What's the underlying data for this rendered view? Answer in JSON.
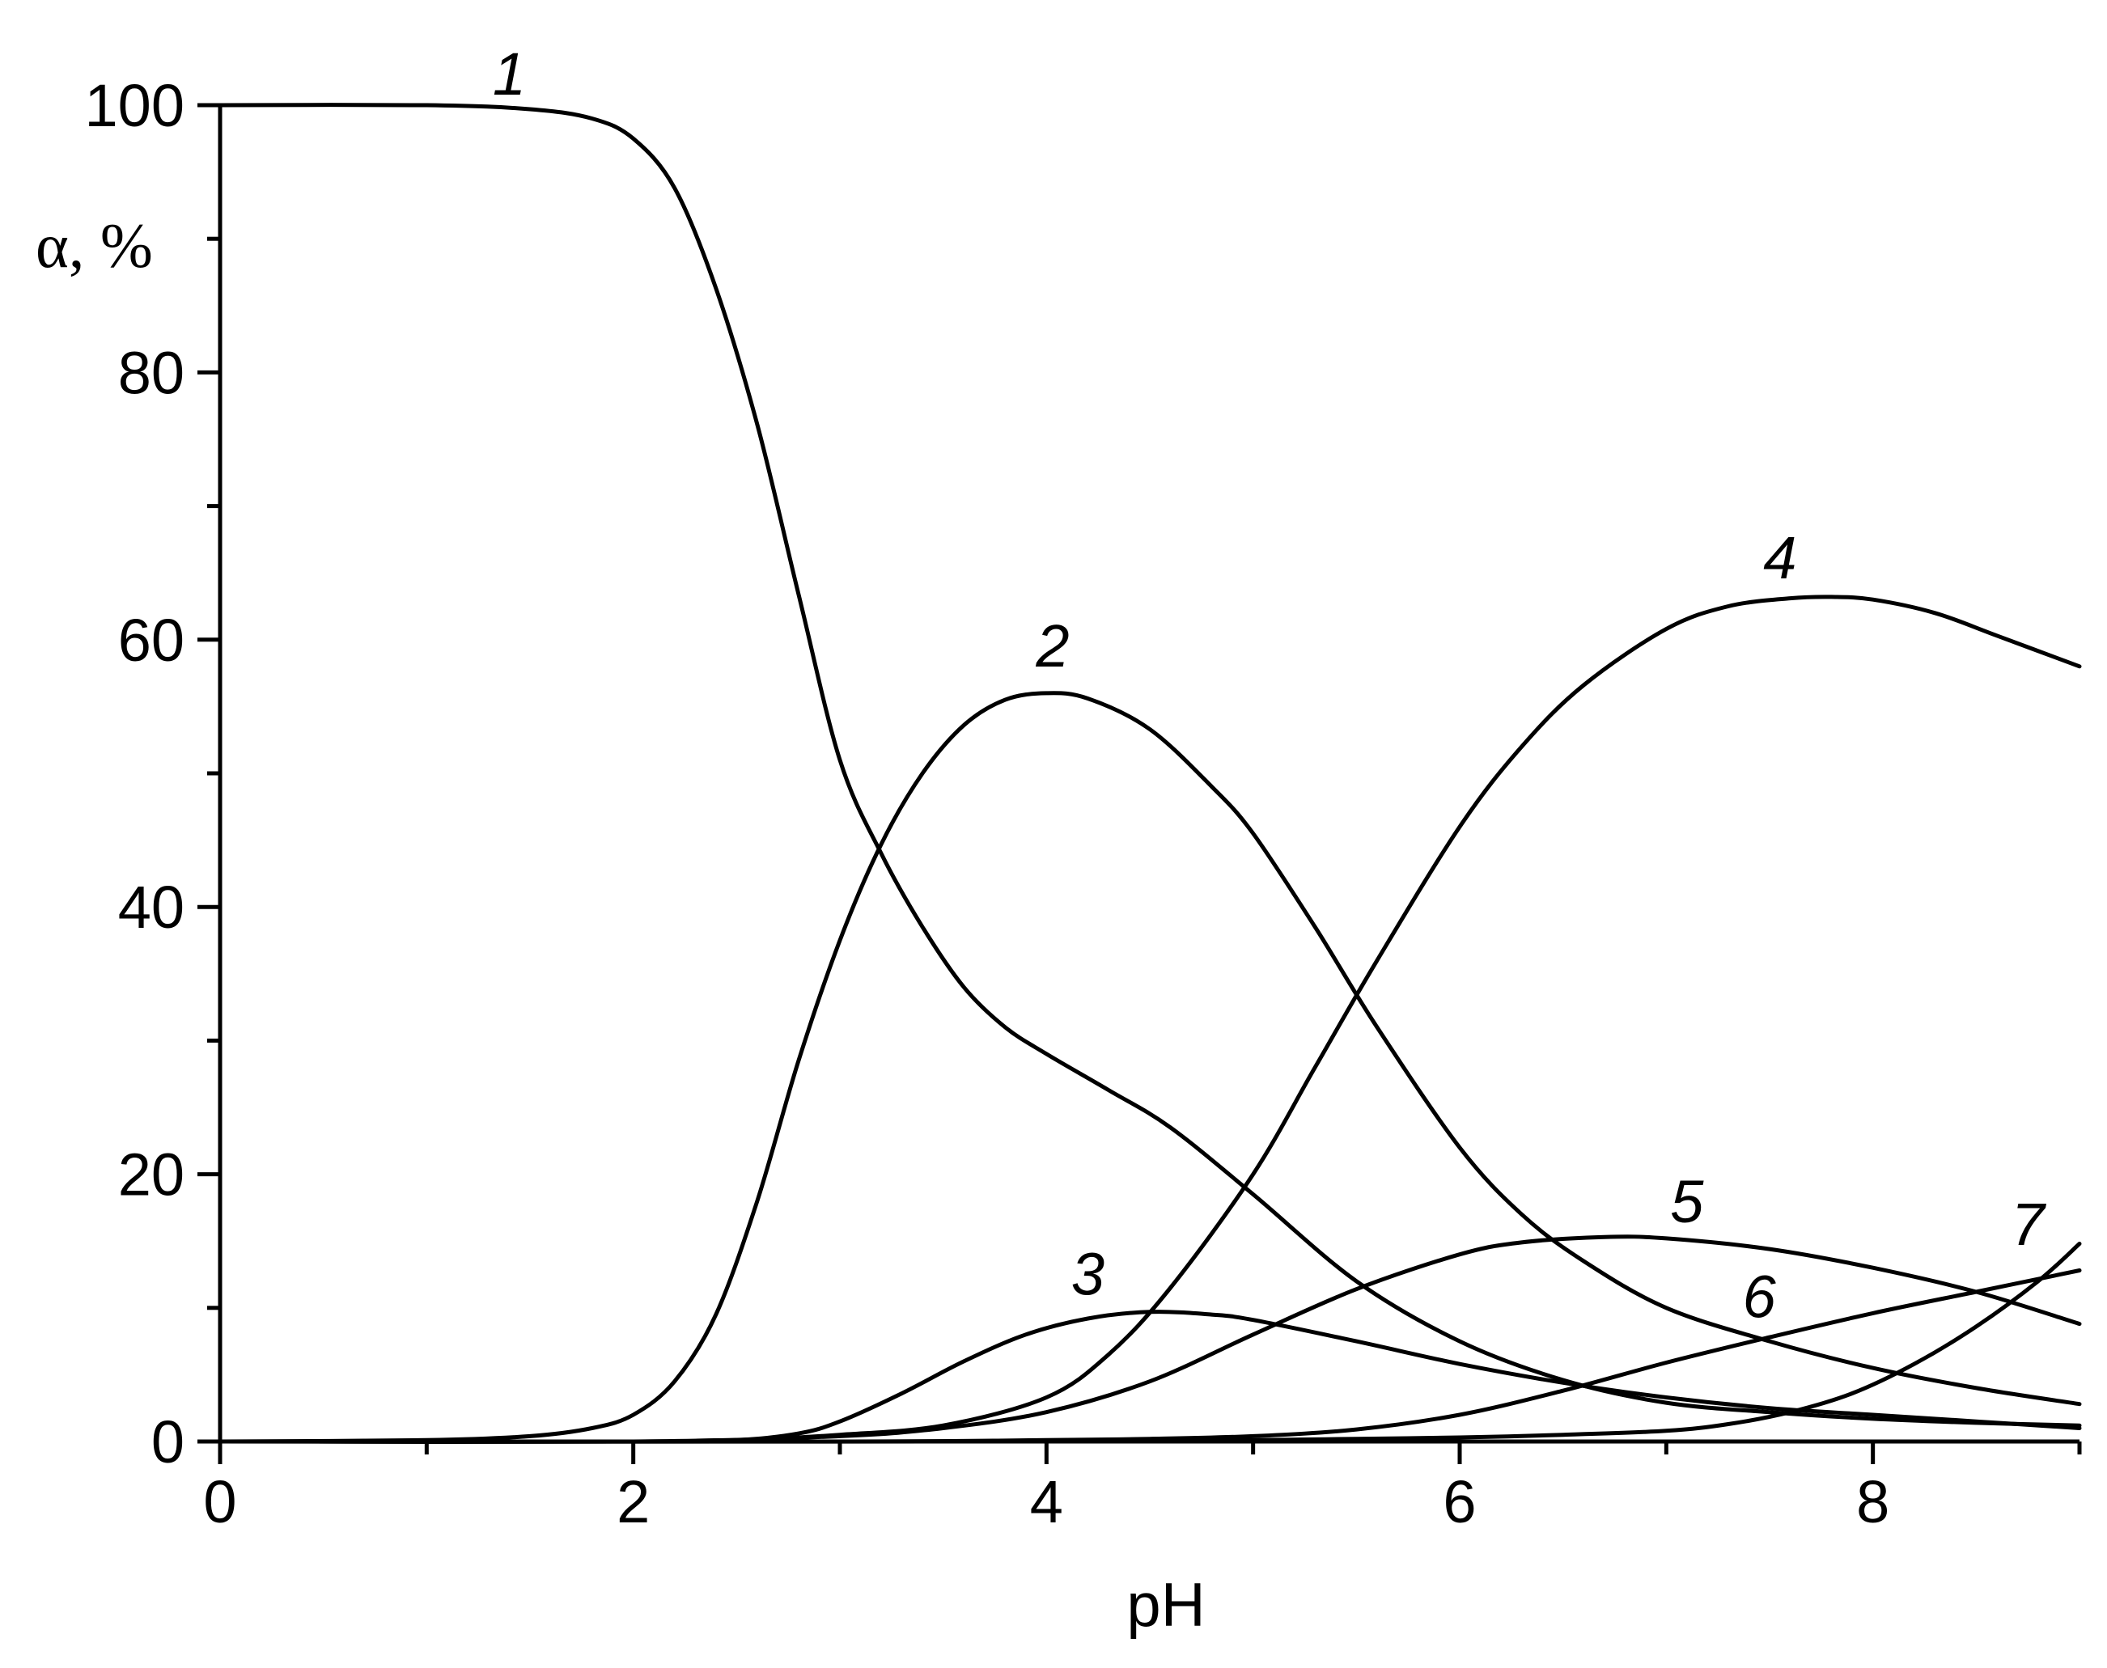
{
  "chart_data": {
    "type": "line",
    "xlabel": "pH",
    "ylabel": "α, %",
    "xlim": [
      0,
      9
    ],
    "ylim": [
      0,
      100
    ],
    "x_ticks": [
      0,
      2,
      4,
      6,
      8
    ],
    "y_ticks": [
      0,
      20,
      40,
      60,
      80,
      100
    ],
    "grid": false,
    "series": [
      {
        "name": "1",
        "x": [
          0,
          1,
          1.5,
          1.8,
          2.0,
          2.2,
          2.4,
          2.6,
          2.8,
          3.0,
          3.2,
          3.4,
          3.6,
          3.8,
          4.0,
          4.3,
          4.6,
          5.0,
          5.5,
          6.0,
          6.5,
          7.0,
          7.5,
          8.0,
          8.5,
          9.0
        ],
        "y": [
          100,
          100,
          99.7,
          99,
          97.5,
          93.8,
          86.3,
          76.1,
          63.4,
          51,
          44,
          38.5,
          34,
          31,
          29,
          26.3,
          23.5,
          18.5,
          12,
          7.5,
          4.6,
          2.9,
          2.2,
          1.7,
          1.4,
          1.2
        ]
      },
      {
        "name": "2",
        "x": [
          0,
          1,
          1.5,
          1.8,
          2.0,
          2.2,
          2.4,
          2.6,
          2.8,
          3.0,
          3.2,
          3.4,
          3.6,
          3.8,
          4.0,
          4.2,
          4.5,
          4.8,
          5.0,
          5.3,
          5.6,
          6.0,
          6.3,
          6.6,
          7.0,
          7.5,
          8.0,
          8.5,
          9.0
        ],
        "y": [
          0,
          0.1,
          0.4,
          1,
          2,
          4.5,
          9.5,
          18,
          28.5,
          37.5,
          44.7,
          50,
          53.6,
          55.5,
          56,
          55.6,
          53.3,
          49,
          45.5,
          38.5,
          31,
          22,
          17,
          13.5,
          10,
          7.5,
          5.5,
          4,
          2.8
        ]
      },
      {
        "name": "3",
        "x": [
          0,
          2.0,
          2.5,
          2.8,
          3.0,
          3.3,
          3.6,
          3.9,
          4.2,
          4.5,
          4.8,
          5.0,
          5.5,
          6.0,
          6.5,
          7.0,
          7.5,
          8.0,
          8.5,
          9.0
        ],
        "y": [
          0,
          0,
          0.1,
          0.6,
          1.5,
          3.6,
          6,
          8,
          9.2,
          9.7,
          9.5,
          9.1,
          7.5,
          5.8,
          4.4,
          3.3,
          2.5,
          2,
          1.5,
          1
        ]
      },
      {
        "name": "4",
        "x": [
          0,
          2.0,
          2.5,
          3.0,
          3.5,
          4.0,
          4.3,
          4.6,
          5.0,
          5.3,
          5.6,
          6.0,
          6.3,
          6.6,
          7.0,
          7.3,
          7.6,
          7.8,
          8.0,
          8.3,
          8.6,
          9.0
        ],
        "y": [
          0,
          0,
          0.1,
          0.5,
          1.2,
          3.3,
          6.5,
          11.5,
          20,
          28,
          36,
          46,
          52,
          56.6,
          60.8,
          62.5,
          63.1,
          63.2,
          63,
          62,
          60.3,
          58
        ]
      },
      {
        "name": "5",
        "x": [
          0,
          2.0,
          3.0,
          3.5,
          4.0,
          4.5,
          5.0,
          5.5,
          6.0,
          6.3,
          6.7,
          7.0,
          7.5,
          8.0,
          8.5,
          9.0
        ],
        "y": [
          0,
          0,
          0.4,
          1,
          2.2,
          4.5,
          8,
          11.4,
          14,
          14.9,
          15.3,
          15.2,
          14.4,
          13,
          11.2,
          8.8
        ]
      },
      {
        "name": "6",
        "x": [
          0,
          3.0,
          4.0,
          4.5,
          5.0,
          5.5,
          6.0,
          6.5,
          7.0,
          7.5,
          8.0,
          8.5,
          9.0
        ],
        "y": [
          0,
          0,
          0.1,
          0.2,
          0.4,
          0.9,
          2,
          3.8,
          5.9,
          7.8,
          9.6,
          11.2,
          12.8
        ]
      },
      {
        "name": "7",
        "x": [
          0,
          4.0,
          5.0,
          5.5,
          6.0,
          6.5,
          7.0,
          7.3,
          7.6,
          7.9,
          8.2,
          8.5,
          8.8,
          9.0
        ],
        "y": [
          0,
          0,
          0.1,
          0.2,
          0.3,
          0.5,
          0.8,
          1.3,
          2.2,
          3.6,
          5.8,
          8.6,
          12,
          14.8
        ]
      }
    ]
  }
}
